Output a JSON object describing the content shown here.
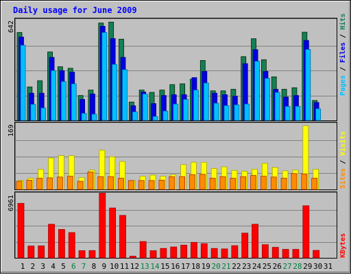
{
  "title": "Daily usage for June 2009",
  "colors": {
    "frame_bg": "#c0c0c0",
    "panel_bg": "#c0c0c0",
    "title": "#0000ff",
    "hits": "#157f57",
    "files": "#0000e0",
    "pages": "#00c0ff",
    "visits": "#ffff00",
    "sites": "#ff8c00",
    "kbytes": "#ff0000",
    "weekend_label": "#008040",
    "weekday_label": "#000000"
  },
  "chart_data": [
    {
      "type": "bar",
      "panel": "hits-files-pages",
      "ymax_label": "642",
      "ylim": [
        0,
        642
      ],
      "legend": {
        "pages": "Pages",
        "files": "Files",
        "hits": "Hits",
        "sep1": " / ",
        "sep2": " / "
      },
      "categories": [
        "1",
        "2",
        "3",
        "4",
        "5",
        "6",
        "7",
        "8",
        "9",
        "10",
        "11",
        "12",
        "13",
        "14",
        "15",
        "16",
        "17",
        "18",
        "19",
        "20",
        "21",
        "22",
        "23",
        "24",
        "25",
        "26",
        "27",
        "28",
        "29",
        "30",
        "31"
      ],
      "series": [
        {
          "name": "Hits",
          "values": [
            565,
            215,
            255,
            440,
            345,
            335,
            160,
            195,
            626,
            632,
            522,
            118,
            195,
            180,
            195,
            230,
            235,
            265,
            385,
            190,
            190,
            200,
            410,
            525,
            390,
            280,
            200,
            210,
            567,
            128,
            0
          ]
        },
        {
          "name": "Files",
          "values": [
            536,
            175,
            175,
            405,
            320,
            310,
            135,
            170,
            605,
            526,
            405,
            94,
            183,
            108,
            160,
            165,
            165,
            275,
            315,
            175,
            165,
            155,
            365,
            455,
            315,
            200,
            150,
            160,
            514,
            115,
            0
          ]
        },
        {
          "name": "Pages",
          "values": [
            483,
            103,
            80,
            320,
            250,
            235,
            45,
            40,
            565,
            360,
            326,
            55,
            170,
            25,
            60,
            105,
            135,
            195,
            240,
            110,
            95,
            100,
            105,
            380,
            270,
            180,
            90,
            90,
            456,
            75,
            0
          ]
        }
      ]
    },
    {
      "type": "bar",
      "panel": "visits-sites",
      "ymax_label": "169",
      "ylim": [
        0,
        169
      ],
      "legend": {
        "sites": "Sites",
        "visits": "Visits",
        "sep": " / "
      },
      "categories": [
        "1",
        "2",
        "3",
        "4",
        "5",
        "6",
        "7",
        "8",
        "9",
        "10",
        "11",
        "12",
        "13",
        "14",
        "15",
        "16",
        "17",
        "18",
        "19",
        "20",
        "21",
        "22",
        "23",
        "24",
        "25",
        "26",
        "27",
        "28",
        "29",
        "30",
        "31"
      ],
      "series": [
        {
          "name": "Visits",
          "values": [
            23,
            29,
            52,
            81,
            87,
            87,
            31,
            50,
            101,
            84,
            72,
            23,
            34,
            37,
            34,
            38,
            64,
            70,
            70,
            54,
            58,
            49,
            47,
            52,
            67,
            57,
            48,
            50,
            164,
            52,
            0
          ]
        },
        {
          "name": "Sites",
          "values": [
            21,
            24,
            29,
            30,
            32,
            34,
            21,
            45,
            33,
            33,
            29,
            23,
            23,
            23,
            24,
            33,
            33,
            38,
            39,
            29,
            33,
            29,
            33,
            36,
            34,
            32,
            29,
            41,
            40,
            29,
            0
          ]
        }
      ]
    },
    {
      "type": "bar",
      "panel": "kbytes",
      "ymax_label": "6961",
      "ylim": [
        0,
        6961
      ],
      "legend": {
        "kbytes": "KBytes"
      },
      "categories": [
        "1",
        "2",
        "3",
        "4",
        "5",
        "6",
        "7",
        "8",
        "9",
        "10",
        "11",
        "12",
        "13",
        "14",
        "15",
        "16",
        "17",
        "18",
        "19",
        "20",
        "21",
        "22",
        "23",
        "24",
        "25",
        "26",
        "27",
        "28",
        "29",
        "30",
        "31"
      ],
      "series": [
        {
          "name": "KBytes",
          "values": [
            5900,
            1280,
            1300,
            3640,
            3080,
            2740,
            780,
            790,
            7000,
            5400,
            4600,
            180,
            1770,
            780,
            1020,
            1180,
            1380,
            1680,
            1540,
            1020,
            970,
            1320,
            2680,
            3640,
            1430,
            1140,
            920,
            920,
            5640,
            810,
            0
          ]
        }
      ]
    }
  ],
  "x_labels": [
    {
      "t": "1",
      "w": false
    },
    {
      "t": "2",
      "w": false
    },
    {
      "t": "3",
      "w": false
    },
    {
      "t": "4",
      "w": false
    },
    {
      "t": "5",
      "w": false
    },
    {
      "t": "6",
      "w": true
    },
    {
      "t": "7",
      "w": true
    },
    {
      "t": "8",
      "w": false
    },
    {
      "t": "9",
      "w": false
    },
    {
      "t": "10",
      "w": false
    },
    {
      "t": "11",
      "w": false
    },
    {
      "t": "12",
      "w": false
    },
    {
      "t": "13",
      "w": true
    },
    {
      "t": "14",
      "w": true
    },
    {
      "t": "15",
      "w": false
    },
    {
      "t": "16",
      "w": false
    },
    {
      "t": "17",
      "w": false
    },
    {
      "t": "18",
      "w": false
    },
    {
      "t": "19",
      "w": false
    },
    {
      "t": "20",
      "w": true
    },
    {
      "t": "21",
      "w": true
    },
    {
      "t": "22",
      "w": false
    },
    {
      "t": "23",
      "w": false
    },
    {
      "t": "24",
      "w": false
    },
    {
      "t": "25",
      "w": false
    },
    {
      "t": "26",
      "w": false
    },
    {
      "t": "27",
      "w": true
    },
    {
      "t": "28",
      "w": true
    },
    {
      "t": "29",
      "w": false
    },
    {
      "t": "30",
      "w": false
    },
    {
      "t": "31",
      "w": false
    }
  ]
}
